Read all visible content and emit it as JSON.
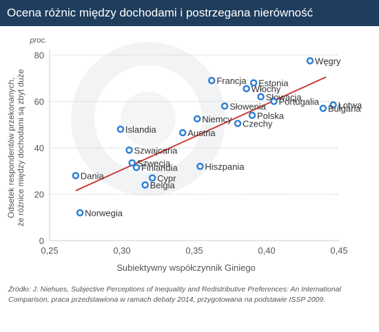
{
  "header": {
    "title": "Ocena różnic między dochodami i postrzegana nierówność"
  },
  "source": "Źródło: J. Niehues, Subjective Perceptions of Inequality and Redistributive Preferences: An International Comparison, praca przedstawiona w ramach debaty 2014, przygotowana na podstawie ISSP 2009.",
  "colors": {
    "header_bg": "#1f3d5c",
    "point": "#2a7fd4",
    "trend": "#cc3b3b",
    "grid": "#cccccc",
    "text": "#333333",
    "axis_text": "#555555"
  },
  "chart_data": {
    "type": "scatter",
    "title": "Ocena różnic między dochodami i postrzegana nierówność",
    "xlabel": "Subiektywny współczynnik Giniego",
    "ylabel": "Odsetek respondentów przekonanych, że różnice między dochodami są zbyt duże",
    "yunit": "proc.",
    "xlim": [
      0.25,
      0.45
    ],
    "ylim": [
      0,
      80
    ],
    "xticks": [
      "0,25",
      "0,30",
      "0,35",
      "0,40",
      "0,45"
    ],
    "xtick_values": [
      0.25,
      0.3,
      0.35,
      0.4,
      0.45
    ],
    "yticks": [
      "0",
      "20",
      "40",
      "60",
      "80"
    ],
    "ytick_values": [
      0,
      20,
      40,
      60,
      80
    ],
    "grid": "horizontal",
    "points": [
      {
        "label": "Węgry",
        "x": 0.43,
        "y": 77.5
      },
      {
        "label": "Francja",
        "x": 0.362,
        "y": 69
      },
      {
        "label": "Estonia",
        "x": 0.391,
        "y": 68
      },
      {
        "label": "Włochy",
        "x": 0.386,
        "y": 65.5
      },
      {
        "label": "Słowacja",
        "x": 0.396,
        "y": 62
      },
      {
        "label": "Portugalia",
        "x": 0.405,
        "y": 60
      },
      {
        "label": "Łotwa",
        "x": 0.446,
        "y": 58.5
      },
      {
        "label": "Bułgaria",
        "x": 0.439,
        "y": 57
      },
      {
        "label": "Słowenia",
        "x": 0.371,
        "y": 58
      },
      {
        "label": "Polska",
        "x": 0.39,
        "y": 54
      },
      {
        "label": "Niemcy",
        "x": 0.352,
        "y": 52.5
      },
      {
        "label": "Czechy",
        "x": 0.38,
        "y": 50.5
      },
      {
        "label": "Islandia",
        "x": 0.299,
        "y": 48
      },
      {
        "label": "Austria",
        "x": 0.342,
        "y": 46.5
      },
      {
        "label": "Szwajcaria",
        "x": 0.305,
        "y": 39
      },
      {
        "label": "Szwecja",
        "x": 0.307,
        "y": 33.5
      },
      {
        "label": "Finlandia",
        "x": 0.31,
        "y": 31.5
      },
      {
        "label": "Hiszpania",
        "x": 0.354,
        "y": 32
      },
      {
        "label": "Dania",
        "x": 0.268,
        "y": 28
      },
      {
        "label": "Cypr",
        "x": 0.321,
        "y": 27
      },
      {
        "label": "Belgia",
        "x": 0.316,
        "y": 24
      },
      {
        "label": "Norwegia",
        "x": 0.271,
        "y": 12
      }
    ],
    "trendline": {
      "x": [
        0.268,
        0.441
      ],
      "y": [
        21.5,
        70.5
      ]
    }
  }
}
